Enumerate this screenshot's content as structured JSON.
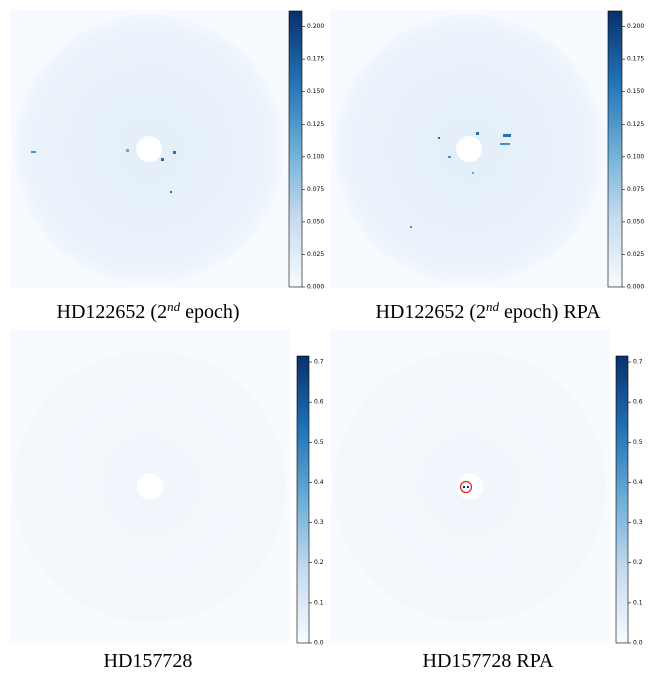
{
  "panels": [
    {
      "caption": [
        "HD122652 (2",
        "nd",
        " epoch)"
      ],
      "colorbar": {
        "lim": [
          0,
          0.212
        ],
        "ticks": [
          {
            "value": 0,
            "label": "0.000"
          },
          {
            "value": 0.025,
            "label": "0.025"
          },
          {
            "value": 0.05,
            "label": "0.050"
          },
          {
            "value": 0.075,
            "label": "0.075"
          },
          {
            "value": 0.1,
            "label": "0.100"
          },
          {
            "value": 0.125,
            "label": "0.125"
          },
          {
            "value": 0.15,
            "label": "0.150"
          },
          {
            "value": 0.175,
            "label": "0.175"
          },
          {
            "value": 0.2,
            "label": "0.200"
          }
        ]
      }
    },
    {
      "caption": [
        "HD122652 (2",
        "nd",
        " epoch) RPA"
      ],
      "colorbar": {
        "lim": [
          0,
          0.212
        ],
        "ticks": [
          {
            "value": 0,
            "label": "0.000"
          },
          {
            "value": 0.025,
            "label": "0.025"
          },
          {
            "value": 0.05,
            "label": "0.050"
          },
          {
            "value": 0.075,
            "label": "0.075"
          },
          {
            "value": 0.1,
            "label": "0.100"
          },
          {
            "value": 0.125,
            "label": "0.125"
          },
          {
            "value": 0.15,
            "label": "0.150"
          },
          {
            "value": 0.175,
            "label": "0.175"
          },
          {
            "value": 0.2,
            "label": "0.200"
          }
        ]
      }
    },
    {
      "caption": [
        "HD157728"
      ],
      "colorbar": {
        "lim": [
          0,
          0.715
        ],
        "ticks": [
          {
            "value": 0,
            "label": "0.0"
          },
          0.1,
          0.2,
          0.3,
          0.4,
          0.5,
          0.6,
          0.7
        ]
      }
    },
    {
      "caption": [
        "HD157728 RPA"
      ],
      "colorbar": {
        "lim": [
          0,
          0.715
        ],
        "ticks": [
          {
            "value": 0,
            "label": "0.0"
          },
          0.1,
          0.2,
          0.3,
          0.4,
          0.5,
          0.6,
          0.7
        ]
      }
    }
  ]
}
